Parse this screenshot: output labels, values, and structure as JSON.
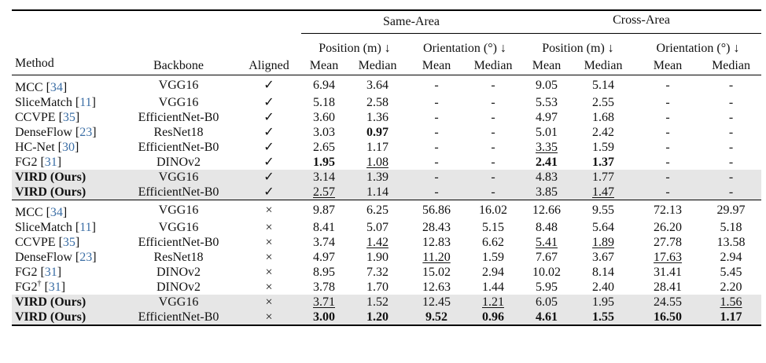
{
  "header": {
    "same_area": "Same-Area",
    "cross_area": "Cross-Area",
    "position": "Position (m) ↓",
    "orientation": "Orientation (°) ↓",
    "method": "Method",
    "backbone": "Backbone",
    "aligned": "Aligned",
    "mean": "Mean",
    "median": "Median"
  },
  "aligned_rows": [
    {
      "method": "MCC",
      "cite": "34",
      "backbone": "VGG16",
      "aligned": "✓",
      "vals": [
        "6.94",
        "3.64",
        "-",
        "-",
        "9.05",
        "5.14",
        "-",
        "-"
      ],
      "bold": [],
      "ul": [],
      "highlight": false
    },
    {
      "method": "SliceMatch",
      "cite": "11",
      "backbone": "VGG16",
      "aligned": "✓",
      "vals": [
        "5.18",
        "2.58",
        "-",
        "-",
        "5.53",
        "2.55",
        "-",
        "-"
      ],
      "bold": [],
      "ul": [],
      "highlight": false
    },
    {
      "method": "CCVPE",
      "cite": "35",
      "backbone": "EfficientNet-B0",
      "aligned": "✓",
      "vals": [
        "3.60",
        "1.36",
        "-",
        "-",
        "4.97",
        "1.68",
        "-",
        "-"
      ],
      "bold": [],
      "ul": [],
      "highlight": false
    },
    {
      "method": "DenseFlow",
      "cite": "23",
      "backbone": "ResNet18",
      "aligned": "✓",
      "vals": [
        "3.03",
        "0.97",
        "-",
        "-",
        "5.01",
        "2.42",
        "-",
        "-"
      ],
      "bold": [
        1
      ],
      "ul": [],
      "highlight": false
    },
    {
      "method": "HC-Net",
      "cite": "30",
      "backbone": "EfficientNet-B0",
      "aligned": "✓",
      "vals": [
        "2.65",
        "1.17",
        "-",
        "-",
        "3.35",
        "1.59",
        "-",
        "-"
      ],
      "bold": [],
      "ul": [
        4
      ],
      "highlight": false
    },
    {
      "method": "FG2",
      "cite": "31",
      "backbone": "DINOv2",
      "aligned": "✓",
      "vals": [
        "1.95",
        "1.08",
        "-",
        "-",
        "2.41",
        "1.37",
        "-",
        "-"
      ],
      "bold": [
        0,
        4,
        5
      ],
      "ul": [
        1
      ],
      "highlight": false
    },
    {
      "method": "VIRD (Ours)",
      "cite": "",
      "backbone": "VGG16",
      "aligned": "✓",
      "vals": [
        "3.14",
        "1.39",
        "-",
        "-",
        "4.83",
        "1.77",
        "-",
        "-"
      ],
      "bold": [],
      "ul": [],
      "highlight": true,
      "method_bold": true
    },
    {
      "method": "VIRD (Ours)",
      "cite": "",
      "backbone": "EfficientNet-B0",
      "aligned": "✓",
      "vals": [
        "2.57",
        "1.14",
        "-",
        "-",
        "3.85",
        "1.47",
        "-",
        "-"
      ],
      "bold": [],
      "ul": [
        0,
        5
      ],
      "highlight": true,
      "method_bold": true
    }
  ],
  "unaligned_rows": [
    {
      "method": "MCC",
      "cite": "34",
      "backbone": "VGG16",
      "aligned": "×",
      "vals": [
        "9.87",
        "6.25",
        "56.86",
        "16.02",
        "12.66",
        "9.55",
        "72.13",
        "29.97"
      ],
      "bold": [],
      "ul": [],
      "highlight": false
    },
    {
      "method": "SliceMatch",
      "cite": "11",
      "backbone": "VGG16",
      "aligned": "×",
      "vals": [
        "8.41",
        "5.07",
        "28.43",
        "5.15",
        "8.48",
        "5.64",
        "26.20",
        "5.18"
      ],
      "bold": [],
      "ul": [],
      "highlight": false
    },
    {
      "method": "CCVPE",
      "cite": "35",
      "backbone": "EfficientNet-B0",
      "aligned": "×",
      "vals": [
        "3.74",
        "1.42",
        "12.83",
        "6.62",
        "5.41",
        "1.89",
        "27.78",
        "13.58"
      ],
      "bold": [],
      "ul": [
        1,
        4,
        5
      ],
      "highlight": false
    },
    {
      "method": "DenseFlow",
      "cite": "23",
      "backbone": "ResNet18",
      "aligned": "×",
      "vals": [
        "4.97",
        "1.90",
        "11.20",
        "1.59",
        "7.67",
        "3.67",
        "17.63",
        "2.94"
      ],
      "bold": [],
      "ul": [
        2,
        6
      ],
      "highlight": false
    },
    {
      "method": "FG2",
      "cite": "31",
      "backbone": "DINOv2",
      "aligned": "×",
      "vals": [
        "8.95",
        "7.32",
        "15.02",
        "2.94",
        "10.02",
        "8.14",
        "31.41",
        "5.45"
      ],
      "bold": [],
      "ul": [],
      "highlight": false
    },
    {
      "method": "FG2",
      "sup": "†",
      "cite": "31",
      "backbone": "DINOv2",
      "aligned": "×",
      "vals": [
        "3.78",
        "1.70",
        "12.63",
        "1.44",
        "5.95",
        "2.40",
        "28.41",
        "2.20"
      ],
      "bold": [],
      "ul": [],
      "highlight": false
    },
    {
      "method": "VIRD (Ours)",
      "cite": "",
      "backbone": "VGG16",
      "aligned": "×",
      "vals": [
        "3.71",
        "1.52",
        "12.45",
        "1.21",
        "6.05",
        "1.95",
        "24.55",
        "1.56"
      ],
      "bold": [],
      "ul": [
        0,
        3,
        7
      ],
      "highlight": true,
      "method_bold": true
    },
    {
      "method": "VIRD (Ours)",
      "cite": "",
      "backbone": "EfficientNet-B0",
      "aligned": "×",
      "vals": [
        "3.00",
        "1.20",
        "9.52",
        "0.96",
        "4.61",
        "1.55",
        "16.50",
        "1.17"
      ],
      "bold": [
        0,
        1,
        2,
        3,
        4,
        5,
        6,
        7
      ],
      "ul": [],
      "highlight": true,
      "method_bold": true
    }
  ]
}
